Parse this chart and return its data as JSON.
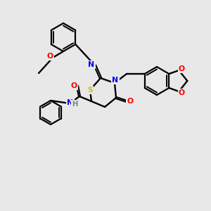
{
  "bg_color": "#e8e8e8",
  "bond_color": "#000000",
  "atom_colors": {
    "S": "#c8c800",
    "N": "#0000ff",
    "O": "#ff0000",
    "H": "#808080",
    "C": "#000000"
  },
  "figsize": [
    3.0,
    3.0
  ],
  "dpi": 100
}
